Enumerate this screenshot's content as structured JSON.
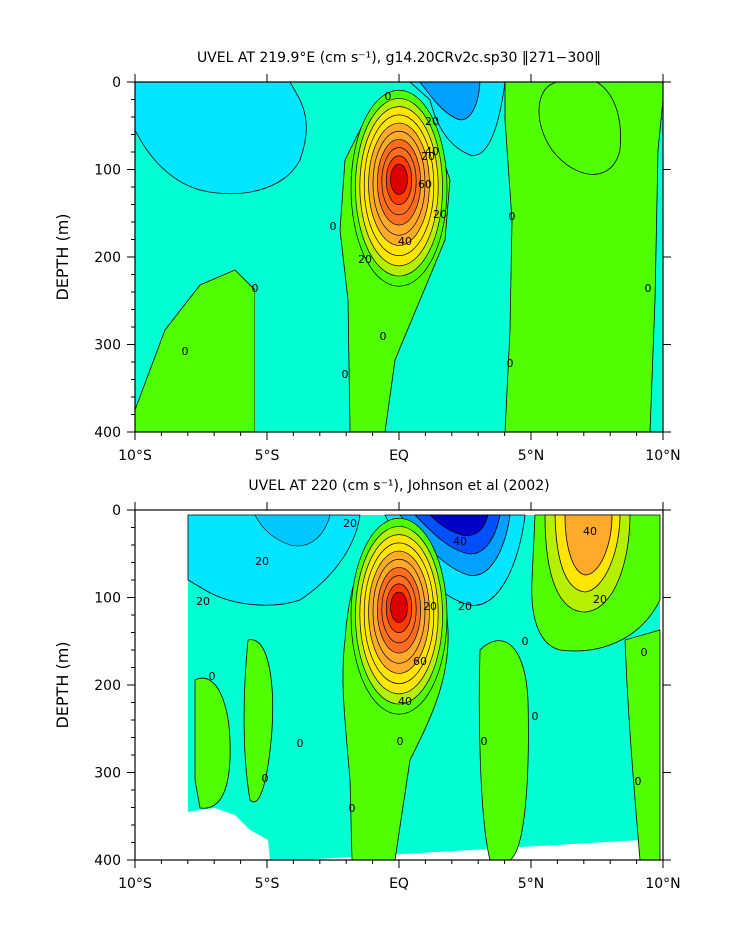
{
  "chart_data": [
    {
      "type": "contour",
      "title": "UVEL AT 219.9°E (cm s⁻¹), g14.20CRv2c.sp30 ‖271−300‖",
      "ylabel": "DEPTH (m)",
      "xlabel": "",
      "x_ticks": [
        "10°S",
        "5°S",
        "EQ",
        "5°N",
        "10°N"
      ],
      "x_range": [
        -10,
        10
      ],
      "y_ticks": [
        "0",
        "100",
        "200",
        "300",
        "400"
      ],
      "y_range": [
        0,
        400
      ],
      "y_inverted": true,
      "contour_interval": 10,
      "contour_labels": [
        "0",
        "20",
        "20",
        "40",
        "60",
        "20",
        "0",
        "0",
        "0",
        "0",
        "0",
        "0",
        "0",
        "0",
        "20",
        "40"
      ],
      "features": [
        {
          "name": "eastward-undercurrent-core",
          "lat": 0.0,
          "depth": 110,
          "max_value": 90
        },
        {
          "name": "westward-surface-jet",
          "lat": 2.0,
          "depth": 0,
          "min_value": -40
        },
        {
          "name": "eastward-countercurrent",
          "lat": 6.5,
          "depth": 50,
          "max_value": 10
        }
      ]
    },
    {
      "type": "contour",
      "title": "UVEL AT 220 (cm s⁻¹), Johnson et al (2002)",
      "ylabel": "DEPTH (m)",
      "xlabel": "",
      "x_ticks": [
        "10°S",
        "5°S",
        "EQ",
        "5°N",
        "10°N"
      ],
      "x_range": [
        -10,
        10
      ],
      "y_ticks": [
        "0",
        "100",
        "200",
        "300",
        "400"
      ],
      "y_range": [
        0,
        400
      ],
      "y_inverted": true,
      "contour_interval": 10,
      "contour_labels": [
        "20",
        "20",
        "20",
        "40",
        "60",
        "20",
        "40",
        "20",
        "40",
        "20",
        "0",
        "0",
        "0",
        "0",
        "0",
        "0",
        "0",
        "0",
        "0",
        "0"
      ],
      "features": [
        {
          "name": "eastward-undercurrent-core",
          "lat": 0.0,
          "depth": 110,
          "max_value": 90
        },
        {
          "name": "westward-surface-jet",
          "lat": 2.0,
          "depth": 10,
          "min_value": -70
        },
        {
          "name": "eastward-countercurrent",
          "lat": 7.0,
          "depth": 70,
          "max_value": 50
        }
      ]
    }
  ],
  "colors": {
    "very_neg": "#0000c8",
    "neg3": "#0050ff",
    "neg2": "#00a0ff",
    "neg1": "#00e6ff",
    "zero": "#00ffd2",
    "pos1": "#50ff00",
    "pos2": "#b4f000",
    "pos3": "#ffe600",
    "pos4": "#ffaa28",
    "pos5": "#ff6e1e",
    "pos6": "#ff3c00",
    "pos7": "#dc0000"
  }
}
